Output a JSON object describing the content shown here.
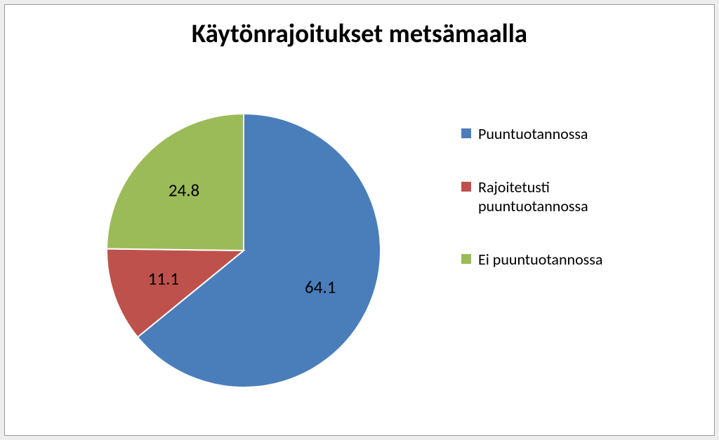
{
  "chart": {
    "type": "pie",
    "title": "Käytönrajoitukset metsämaalla",
    "title_fontsize": 37,
    "title_fontweight": "bold",
    "title_color": "#000000",
    "background_color": "#ffffff",
    "outer_background": "#eeeeee",
    "border_color": "#9a9a9a",
    "start_angle_deg": -90,
    "radius": 195,
    "label_fontsize": 25,
    "label_color": "#000000",
    "legend_fontsize": 22,
    "series": [
      {
        "label": "Puuntuotannossa",
        "value": 64.1,
        "color": "#4a7ebb"
      },
      {
        "label": "Rajoitetusti puuntuotannossa",
        "value": 11.1,
        "color": "#be514c"
      },
      {
        "label": "Ei puuntuotannossa",
        "value": 24.8,
        "color": "#9bbb59"
      }
    ],
    "legend": {
      "swatch_size": 14
    }
  }
}
